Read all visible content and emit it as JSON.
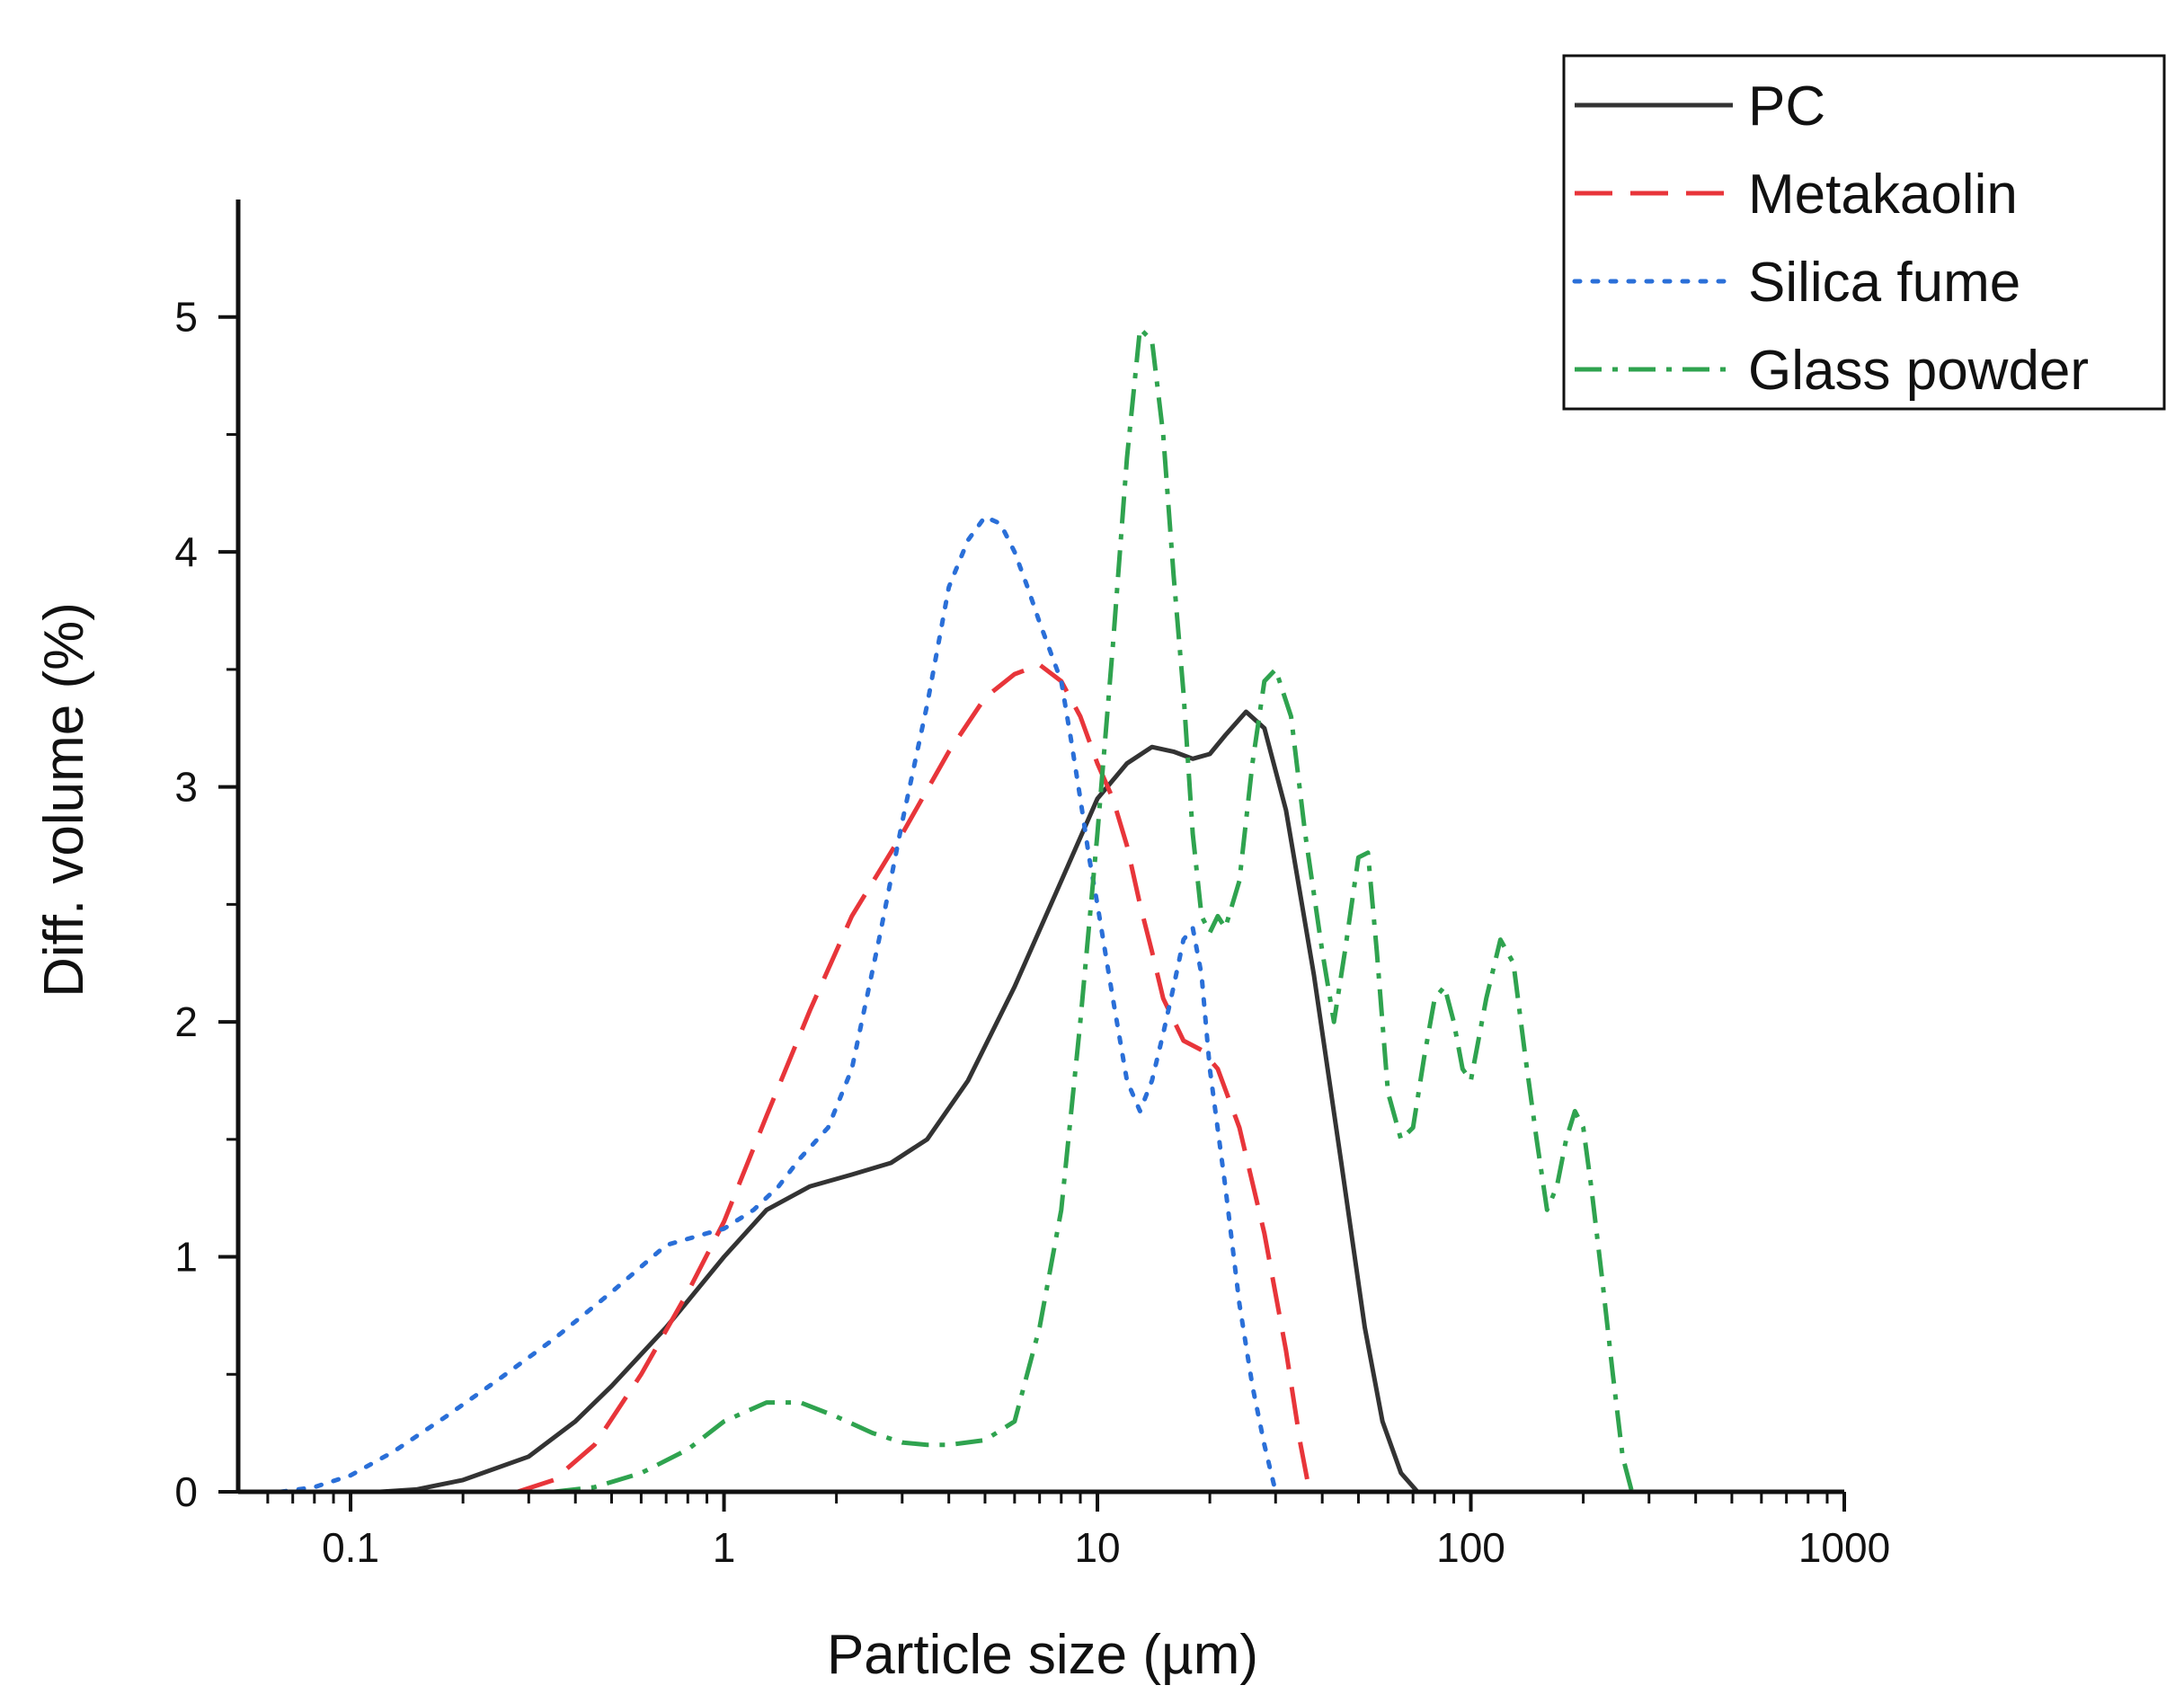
{
  "chart_data": {
    "type": "line",
    "title": "",
    "xlabel": "Particle size (µm)",
    "ylabel": "Diff. volume (%)",
    "xscale": "log",
    "xlim": [
      0.05,
      1000
    ],
    "ylim": [
      0,
      5.5
    ],
    "grid": false,
    "legend_position": "top-right",
    "x_ticks": [
      0.1,
      1,
      10,
      100,
      1000
    ],
    "x_tick_labels": [
      "0.1",
      "1",
      "10",
      "100",
      "1000"
    ],
    "y_ticks": [
      0,
      1,
      2,
      3,
      4,
      5
    ],
    "y_tick_labels": [
      "0",
      "1",
      "2",
      "3",
      "4",
      "5"
    ],
    "series": [
      {
        "name": "PC",
        "color": "#333333",
        "style": "solid",
        "points": [
          [
            0.12,
            0
          ],
          [
            0.15,
            0.01
          ],
          [
            0.2,
            0.05
          ],
          [
            0.3,
            0.15
          ],
          [
            0.4,
            0.3
          ],
          [
            0.5,
            0.45
          ],
          [
            0.7,
            0.7
          ],
          [
            1.0,
            1.0
          ],
          [
            1.3,
            1.2
          ],
          [
            1.7,
            1.3
          ],
          [
            2.2,
            1.35
          ],
          [
            2.8,
            1.4
          ],
          [
            3.5,
            1.5
          ],
          [
            4.5,
            1.75
          ],
          [
            6,
            2.15
          ],
          [
            8,
            2.6
          ],
          [
            10,
            2.95
          ],
          [
            12,
            3.1
          ],
          [
            14,
            3.17
          ],
          [
            16,
            3.15
          ],
          [
            18,
            3.12
          ],
          [
            20,
            3.14
          ],
          [
            22,
            3.22
          ],
          [
            25,
            3.32
          ],
          [
            28,
            3.25
          ],
          [
            32,
            2.9
          ],
          [
            38,
            2.2
          ],
          [
            45,
            1.4
          ],
          [
            52,
            0.7
          ],
          [
            58,
            0.3
          ],
          [
            65,
            0.08
          ],
          [
            72,
            0
          ]
        ]
      },
      {
        "name": "Metakaolin",
        "color": "#e8353a",
        "style": "dashed",
        "points": [
          [
            0.28,
            0
          ],
          [
            0.35,
            0.05
          ],
          [
            0.45,
            0.2
          ],
          [
            0.6,
            0.5
          ],
          [
            0.8,
            0.85
          ],
          [
            1.0,
            1.15
          ],
          [
            1.3,
            1.6
          ],
          [
            1.7,
            2.05
          ],
          [
            2.2,
            2.45
          ],
          [
            3,
            2.8
          ],
          [
            4,
            3.15
          ],
          [
            5,
            3.38
          ],
          [
            6,
            3.48
          ],
          [
            7,
            3.52
          ],
          [
            8,
            3.45
          ],
          [
            9,
            3.3
          ],
          [
            10,
            3.1
          ],
          [
            11,
            2.95
          ],
          [
            12,
            2.75
          ],
          [
            13,
            2.5
          ],
          [
            14,
            2.3
          ],
          [
            15,
            2.1
          ],
          [
            17,
            1.92
          ],
          [
            19,
            1.88
          ],
          [
            21,
            1.8
          ],
          [
            24,
            1.55
          ],
          [
            28,
            1.1
          ],
          [
            32,
            0.6
          ],
          [
            35,
            0.2
          ],
          [
            37,
            0
          ]
        ]
      },
      {
        "name": "Silica fume",
        "color": "#2a6fd8",
        "style": "dotted",
        "points": [
          [
            0.065,
            0
          ],
          [
            0.08,
            0.02
          ],
          [
            0.1,
            0.07
          ],
          [
            0.13,
            0.17
          ],
          [
            0.18,
            0.32
          ],
          [
            0.25,
            0.48
          ],
          [
            0.35,
            0.65
          ],
          [
            0.5,
            0.85
          ],
          [
            0.7,
            1.05
          ],
          [
            0.9,
            1.1
          ],
          [
            1.0,
            1.12
          ],
          [
            1.2,
            1.2
          ],
          [
            1.4,
            1.3
          ],
          [
            1.6,
            1.42
          ],
          [
            1.9,
            1.55
          ],
          [
            2.2,
            1.8
          ],
          [
            2.6,
            2.35
          ],
          [
            3,
            2.85
          ],
          [
            3.5,
            3.35
          ],
          [
            4,
            3.85
          ],
          [
            4.5,
            4.05
          ],
          [
            5,
            4.15
          ],
          [
            5.5,
            4.12
          ],
          [
            6,
            4.0
          ],
          [
            6.5,
            3.85
          ],
          [
            7,
            3.7
          ],
          [
            8,
            3.45
          ],
          [
            8.5,
            3.2
          ],
          [
            9,
            2.95
          ],
          [
            9.5,
            2.7
          ],
          [
            10,
            2.5
          ],
          [
            11,
            2.1
          ],
          [
            12,
            1.75
          ],
          [
            13,
            1.62
          ],
          [
            14,
            1.75
          ],
          [
            15,
            1.95
          ],
          [
            16,
            2.15
          ],
          [
            17,
            2.35
          ],
          [
            18,
            2.4
          ],
          [
            19,
            2.2
          ],
          [
            20,
            1.8
          ],
          [
            22,
            1.3
          ],
          [
            24,
            0.8
          ],
          [
            26,
            0.45
          ],
          [
            28,
            0.2
          ],
          [
            30,
            0
          ]
        ]
      },
      {
        "name": "Glass powder",
        "color": "#2fa34f",
        "style": "dashdot",
        "points": [
          [
            0.35,
            0
          ],
          [
            0.45,
            0.02
          ],
          [
            0.6,
            0.08
          ],
          [
            0.8,
            0.18
          ],
          [
            1.0,
            0.3
          ],
          [
            1.3,
            0.38
          ],
          [
            1.6,
            0.38
          ],
          [
            2,
            0.32
          ],
          [
            2.5,
            0.25
          ],
          [
            3,
            0.21
          ],
          [
            3.5,
            0.2
          ],
          [
            4,
            0.2
          ],
          [
            5,
            0.22
          ],
          [
            6,
            0.3
          ],
          [
            7,
            0.7
          ],
          [
            8,
            1.2
          ],
          [
            9,
            2.0
          ],
          [
            10,
            2.8
          ],
          [
            11,
            3.6
          ],
          [
            12,
            4.4
          ],
          [
            13,
            4.95
          ],
          [
            14,
            4.9
          ],
          [
            15,
            4.5
          ],
          [
            16,
            3.9
          ],
          [
            17,
            3.4
          ],
          [
            18,
            2.8
          ],
          [
            19,
            2.45
          ],
          [
            20,
            2.38
          ],
          [
            21,
            2.45
          ],
          [
            22,
            2.4
          ],
          [
            24,
            2.6
          ],
          [
            26,
            3.1
          ],
          [
            28,
            3.45
          ],
          [
            30,
            3.5
          ],
          [
            33,
            3.3
          ],
          [
            36,
            2.8
          ],
          [
            40,
            2.3
          ],
          [
            43,
            2.0
          ],
          [
            46,
            2.3
          ],
          [
            50,
            2.7
          ],
          [
            53,
            2.72
          ],
          [
            56,
            2.3
          ],
          [
            60,
            1.7
          ],
          [
            65,
            1.5
          ],
          [
            70,
            1.55
          ],
          [
            75,
            1.85
          ],
          [
            80,
            2.1
          ],
          [
            85,
            2.15
          ],
          [
            90,
            2.0
          ],
          [
            95,
            1.8
          ],
          [
            100,
            1.75
          ],
          [
            110,
            2.1
          ],
          [
            120,
            2.35
          ],
          [
            130,
            2.25
          ],
          [
            140,
            1.85
          ],
          [
            150,
            1.5
          ],
          [
            160,
            1.2
          ],
          [
            170,
            1.3
          ],
          [
            180,
            1.5
          ],
          [
            190,
            1.62
          ],
          [
            200,
            1.55
          ],
          [
            210,
            1.3
          ],
          [
            225,
            0.9
          ],
          [
            240,
            0.5
          ],
          [
            255,
            0.15
          ],
          [
            270,
            0
          ]
        ]
      }
    ]
  }
}
